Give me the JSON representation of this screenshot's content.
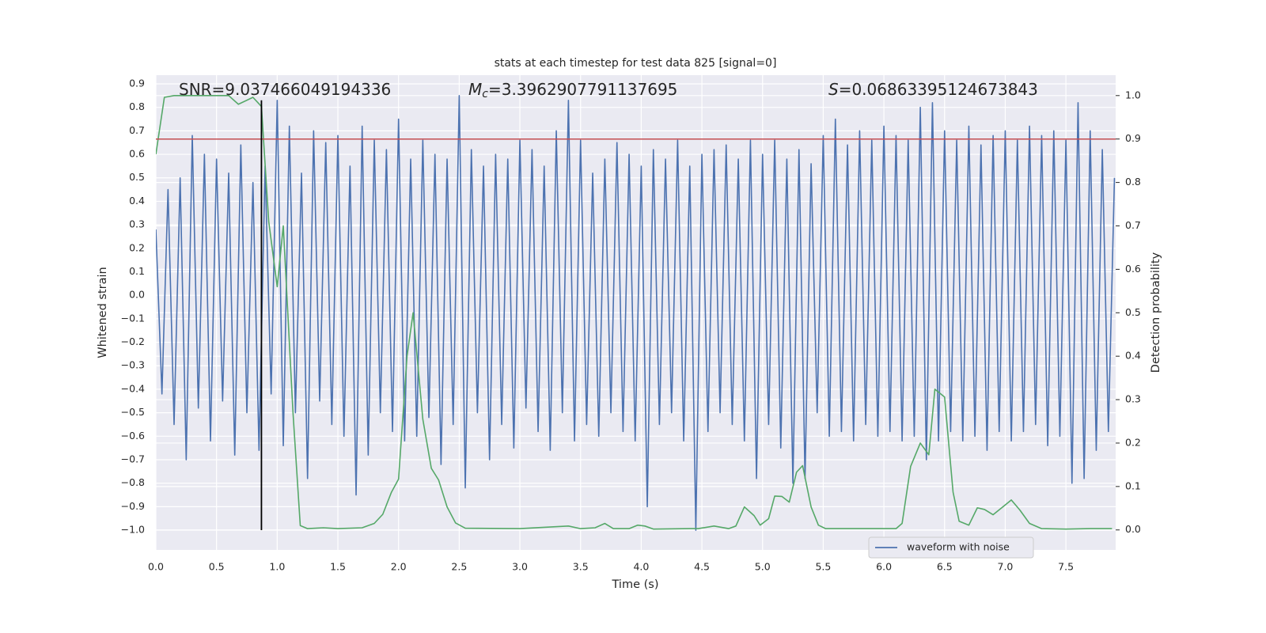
{
  "chart_data": {
    "type": "line",
    "title": "stats at each timestep for test data 825 [signal=0]",
    "xlabel": "Time (s)",
    "ylabel": "Whitened strain",
    "y2label": "Detection probability",
    "xlim": [
      0,
      7.91
    ],
    "ylim": [
      -1.084,
      0.937
    ],
    "y2lim": [
      -0.046,
      1.047
    ],
    "xticks": [
      {
        "value": 0,
        "label": "0.0"
      },
      0.5,
      {
        "value": 1,
        "label": "1.0"
      },
      1.5,
      {
        "value": 2,
        "label": "2.0"
      },
      2.5,
      {
        "value": 3,
        "label": "3.0"
      },
      3.5,
      {
        "value": 4,
        "label": "4.0"
      },
      4.5,
      {
        "value": 5,
        "label": "5.0"
      },
      5.5,
      {
        "value": 6,
        "label": "6.0"
      },
      6.5,
      {
        "value": 7,
        "label": "7.0"
      },
      7.5
    ],
    "yticks": [
      {
        "value": -1,
        "label": "−1.0"
      },
      {
        "value": -0.9,
        "label": "−0.9"
      },
      {
        "value": -0.8,
        "label": "−0.8"
      },
      {
        "value": -0.7,
        "label": "−0.7"
      },
      {
        "value": -0.6,
        "label": "−0.6"
      },
      {
        "value": -0.5,
        "label": "−0.5"
      },
      {
        "value": -0.4,
        "label": "−0.4"
      },
      {
        "value": -0.3,
        "label": "−0.3"
      },
      {
        "value": -0.2,
        "label": "−0.2"
      },
      {
        "value": -0.1,
        "label": "−0.1"
      },
      {
        "value": 0,
        "label": "0.0"
      },
      0.1,
      0.2,
      0.3,
      0.4,
      0.5,
      0.6,
      0.7,
      0.8,
      0.9
    ],
    "y2ticks": [
      {
        "value": 0,
        "label": "0.0"
      },
      0.1,
      0.2,
      0.3,
      0.4,
      0.5,
      0.6,
      0.7,
      0.8,
      0.9,
      {
        "value": 1,
        "label": "1.0"
      }
    ],
    "grid": true,
    "legend": "lower right",
    "annotations": [
      {
        "text": "SNR=9.037466049194336"
      },
      {
        "symbol": "M",
        "subscript": "c",
        "text": "=3.3962907791137695"
      },
      {
        "symbol": "S",
        "text": "=0.06863395124673843"
      }
    ],
    "hlines": [
      {
        "y": 0.9,
        "axis": "y2",
        "color": "#c44e52"
      }
    ],
    "vlines": [
      {
        "x": 0.87,
        "ymin": -1.0,
        "ymax": 0.83,
        "color": "#000000"
      }
    ],
    "series": [
      {
        "name": "waveform with noise",
        "color": "#4c72b0",
        "x": [
          0,
          0.05,
          0.1,
          0.15,
          0.2,
          0.25,
          0.3,
          0.35,
          0.4,
          0.45,
          0.5,
          0.55,
          0.6,
          0.65,
          0.7,
          0.75,
          0.8,
          0.85,
          0.9,
          0.95,
          1,
          1.05,
          1.1,
          1.15,
          1.2,
          1.25,
          1.3,
          1.35,
          1.4,
          1.45,
          1.5,
          1.55,
          1.6,
          1.65,
          1.7,
          1.75,
          1.8,
          1.85,
          1.9,
          1.95,
          2,
          2.05,
          2.1,
          2.15,
          2.2,
          2.25,
          2.3,
          2.35,
          2.4,
          2.45,
          2.5,
          2.55,
          2.6,
          2.65,
          2.7,
          2.75,
          2.8,
          2.85,
          2.9,
          2.95,
          3,
          3.05,
          3.1,
          3.15,
          3.2,
          3.25,
          3.3,
          3.35,
          3.4,
          3.45,
          3.5,
          3.55,
          3.6,
          3.65,
          3.7,
          3.75,
          3.8,
          3.85,
          3.9,
          3.95,
          4,
          4.05,
          4.1,
          4.15,
          4.2,
          4.25,
          4.3,
          4.35,
          4.4,
          4.45,
          4.5,
          4.55,
          4.6,
          4.65,
          4.7,
          4.75,
          4.8,
          4.85,
          4.9,
          4.95,
          5,
          5.05,
          5.1,
          5.15,
          5.2,
          5.25,
          5.3,
          5.35,
          5.4,
          5.45,
          5.5,
          5.55,
          5.6,
          5.65,
          5.7,
          5.75,
          5.8,
          5.85,
          5.9,
          5.95,
          6,
          6.05,
          6.1,
          6.15,
          6.2,
          6.25,
          6.3,
          6.35,
          6.4,
          6.45,
          6.5,
          6.55,
          6.6,
          6.65,
          6.7,
          6.75,
          6.8,
          6.85,
          6.9,
          6.95,
          7,
          7.05,
          7.1,
          7.15,
          7.2,
          7.25,
          7.3,
          7.35,
          7.4,
          7.45,
          7.5,
          7.55,
          7.6,
          7.65,
          7.7,
          7.75,
          7.8,
          7.85,
          7.9
        ],
        "values": [
          0.28,
          -0.42,
          0.45,
          -0.55,
          0.5,
          -0.7,
          0.68,
          -0.48,
          0.6,
          -0.62,
          0.58,
          -0.45,
          0.52,
          -0.68,
          0.64,
          -0.5,
          0.48,
          -0.66,
          0.55,
          -0.42,
          0.83,
          -0.64,
          0.72,
          -0.5,
          0.52,
          -0.78,
          0.7,
          -0.45,
          0.65,
          -0.55,
          0.68,
          -0.6,
          0.55,
          -0.85,
          0.72,
          -0.68,
          0.66,
          -0.5,
          0.62,
          -0.58,
          0.75,
          -0.62,
          0.58,
          -0.6,
          0.66,
          -0.52,
          0.6,
          -0.72,
          0.58,
          -0.55,
          0.85,
          -0.82,
          0.62,
          -0.5,
          0.55,
          -0.7,
          0.6,
          -0.55,
          0.58,
          -0.65,
          0.66,
          -0.48,
          0.62,
          -0.58,
          0.55,
          -0.66,
          0.7,
          -0.5,
          0.83,
          -0.62,
          0.66,
          -0.55,
          0.52,
          -0.6,
          0.58,
          -0.5,
          0.65,
          -0.58,
          0.6,
          -0.62,
          0.55,
          -0.9,
          0.62,
          -0.55,
          0.58,
          -0.5,
          0.66,
          -0.62,
          0.55,
          -1.0,
          0.6,
          -0.58,
          0.62,
          -0.5,
          0.64,
          -0.55,
          0.58,
          -0.62,
          0.66,
          -0.78,
          0.6,
          -0.55,
          0.66,
          -0.65,
          0.58,
          -0.8,
          0.62,
          -0.78,
          0.56,
          -0.5,
          0.68,
          -0.6,
          0.75,
          -0.58,
          0.64,
          -0.62,
          0.7,
          -0.55,
          0.66,
          -0.6,
          0.72,
          -0.58,
          0.68,
          -0.62,
          0.66,
          -0.6,
          0.8,
          -0.7,
          0.82,
          -0.62,
          0.7,
          -0.58,
          0.66,
          -0.62,
          0.72,
          -0.6,
          0.64,
          -0.66,
          0.68,
          -0.58,
          0.7,
          -0.62,
          0.66,
          -0.58,
          0.72,
          -0.55,
          0.68,
          -0.64,
          0.7,
          -0.6,
          0.66,
          -0.8,
          0.82,
          -0.78,
          0.7,
          -0.66,
          0.62,
          -0.58,
          0.5
        ]
      },
      {
        "color": "#55a868",
        "axis": "y2",
        "x": [
          0,
          0.07,
          0.15,
          0.3,
          0.5,
          0.6,
          0.68,
          0.8,
          0.87,
          0.93,
          1,
          1.05,
          1.13,
          1.19,
          1.25,
          1.38,
          1.5,
          1.7,
          1.8,
          1.87,
          1.94,
          2,
          2.07,
          2.12,
          2.2,
          2.27,
          2.33,
          2.4,
          2.47,
          2.55,
          3,
          3.4,
          3.5,
          3.62,
          3.7,
          3.77,
          3.9,
          3.97,
          4.03,
          4.1,
          4.4,
          4.47,
          4.6,
          4.72,
          4.78,
          4.85,
          4.93,
          4.98,
          5.05,
          5.1,
          5.16,
          5.22,
          5.28,
          5.33,
          5.4,
          5.46,
          5.52,
          6,
          6.1,
          6.15,
          6.22,
          6.3,
          6.37,
          6.42,
          6.5,
          6.57,
          6.62,
          6.7,
          6.77,
          6.83,
          6.9,
          6.98,
          7.05,
          7.12,
          7.2,
          7.3,
          7.5,
          7.7,
          7.88
        ],
        "values": [
          0.865,
          0.996,
          1.0,
          1.0,
          1.0,
          1.0,
          0.98,
          0.996,
          0.975,
          0.71,
          0.56,
          0.7,
          0.27,
          0.01,
          0.003,
          0.005,
          0.003,
          0.005,
          0.015,
          0.036,
          0.086,
          0.117,
          0.4,
          0.5,
          0.255,
          0.142,
          0.115,
          0.053,
          0.016,
          0.004,
          0.003,
          0.009,
          0.003,
          0.005,
          0.015,
          0.003,
          0.003,
          0.011,
          0.009,
          0.002,
          0.003,
          0.003,
          0.009,
          0.003,
          0.009,
          0.053,
          0.033,
          0.011,
          0.026,
          0.078,
          0.077,
          0.064,
          0.133,
          0.148,
          0.053,
          0.011,
          0.003,
          0.003,
          0.003,
          0.015,
          0.146,
          0.2,
          0.173,
          0.324,
          0.306,
          0.087,
          0.02,
          0.011,
          0.051,
          0.047,
          0.035,
          0.053,
          0.069,
          0.046,
          0.015,
          0.003,
          0.002,
          0.003,
          0.003
        ]
      }
    ]
  }
}
